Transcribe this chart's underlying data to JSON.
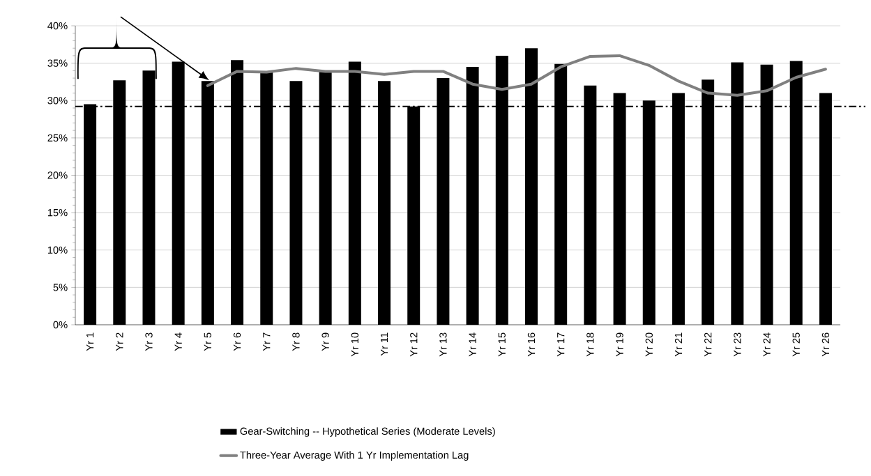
{
  "chart_data": {
    "type": "bar",
    "categories": [
      "Yr 1",
      "Yr 2",
      "Yr 3",
      "Yr 4",
      "Yr 5",
      "Yr 6",
      "Yr 7",
      "Yr 8",
      "Yr 9",
      "Yr 10",
      "Yr 11",
      "Yr 12",
      "Yr 13",
      "Yr 14",
      "Yr 15",
      "Yr 16",
      "Yr 17",
      "Yr 18",
      "Yr 19",
      "Yr 20",
      "Yr 21",
      "Yr 22",
      "Yr 23",
      "Yr 24",
      "Yr 25",
      "Yr 26"
    ],
    "series": [
      {
        "name": "Gear-Switching -- Hypothetical Series (Moderate Levels)",
        "color": "#000000",
        "values": [
          29.5,
          32.7,
          34.0,
          35.2,
          32.6,
          35.4,
          33.8,
          32.6,
          33.9,
          35.2,
          32.6,
          29.2,
          33.0,
          34.5,
          36.0,
          37.0,
          34.9,
          32.0,
          31.0,
          30.0,
          31.0,
          32.8,
          35.1,
          34.8,
          35.3,
          31.0
        ]
      },
      {
        "name": "Three-Year Average With 1 Yr Implementation Lag",
        "type": "line",
        "color": "#808080",
        "values": [
          null,
          null,
          null,
          null,
          32.0,
          33.9,
          33.8,
          34.3,
          33.9,
          33.9,
          33.5,
          33.9,
          33.9,
          32.2,
          31.5,
          32.2,
          34.5,
          35.9,
          36.0,
          34.7,
          32.6,
          31.0,
          30.7,
          31.3,
          33.1,
          34.2
        ]
      }
    ],
    "ylim": [
      0,
      40
    ],
    "yticks": [
      {
        "value": 0,
        "label": "0%"
      },
      {
        "value": 5,
        "label": "5%"
      },
      {
        "value": 10,
        "label": "10%"
      },
      {
        "value": 15,
        "label": "15%"
      },
      {
        "value": 20,
        "label": "20%"
      },
      {
        "value": 25,
        "label": "25%"
      },
      {
        "value": 30,
        "label": "30%"
      },
      {
        "value": 35,
        "label": "35%"
      },
      {
        "value": 40,
        "label": "40%"
      }
    ],
    "grid": "y",
    "legend": "bottom",
    "ref_lines": [
      {
        "axis": "y",
        "value": 29.2,
        "color": "#000000",
        "line_style": "dashdot"
      }
    ]
  }
}
